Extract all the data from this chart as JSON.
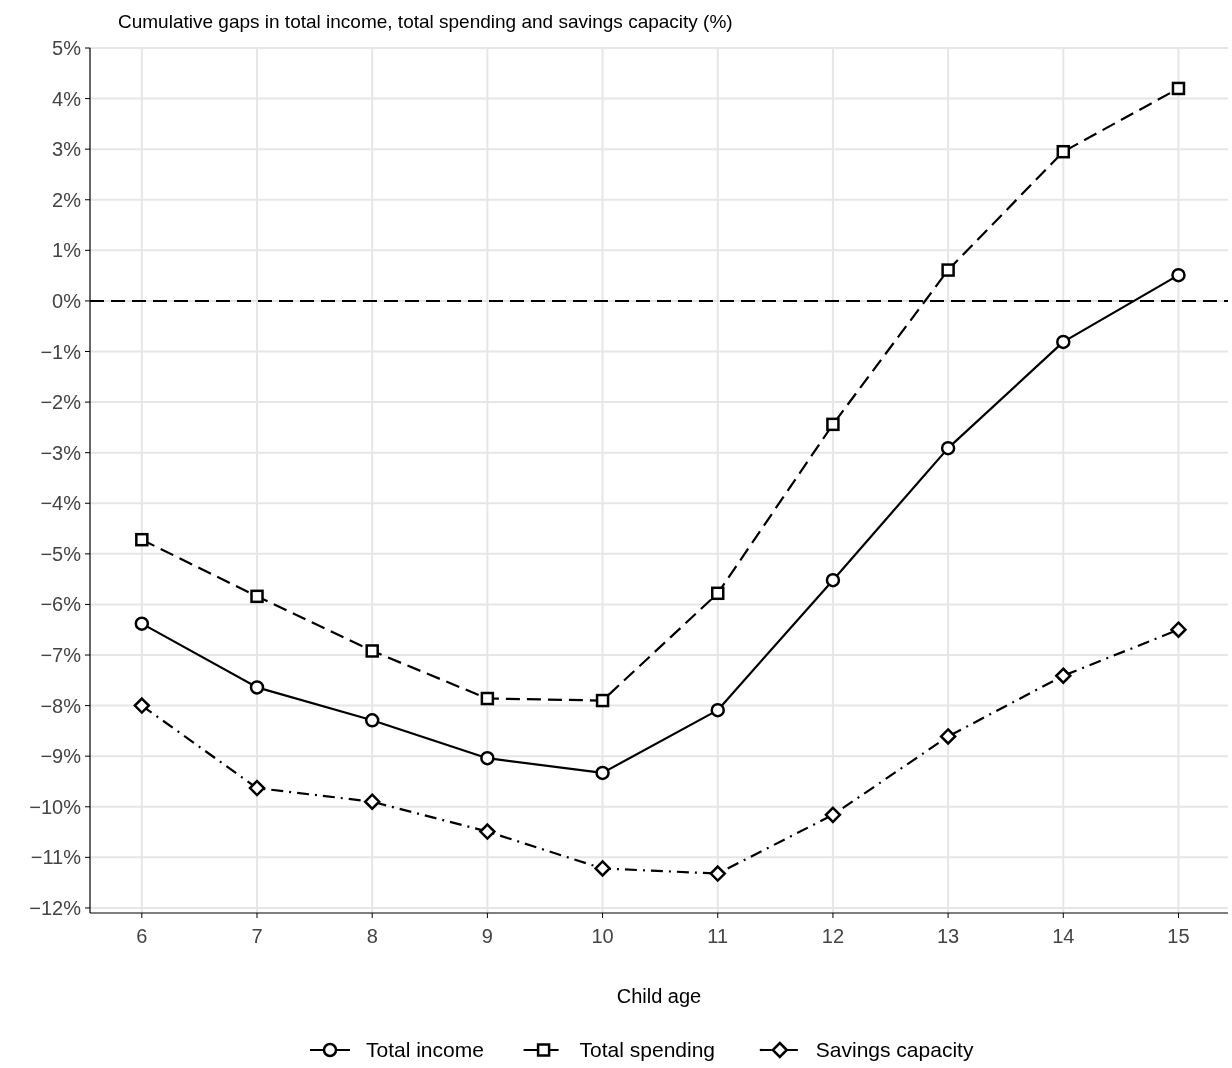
{
  "chart_data": {
    "type": "line",
    "ylabel": "Cumulative gaps in total income, total spending and savings capacity (%)",
    "xlabel": "Child age",
    "x": [
      6,
      7,
      8,
      9,
      10,
      11,
      12,
      13,
      14,
      15
    ],
    "series": [
      {
        "name": "Total income",
        "color": "#000000",
        "marker": "circle",
        "line_style": "solid",
        "values": [
          -6.38,
          -7.64,
          -8.29,
          -9.04,
          -9.33,
          -8.09,
          -5.52,
          -2.91,
          -0.81,
          0.51
        ]
      },
      {
        "name": "Total spending",
        "color": "#000000",
        "marker": "square",
        "line_style": "dashed",
        "values": [
          -4.72,
          -5.84,
          -6.92,
          -7.86,
          -7.9,
          -5.78,
          -2.44,
          0.61,
          2.95,
          4.2
        ]
      },
      {
        "name": "Savings capacity",
        "color": "#000000",
        "marker": "diamond",
        "line_style": "dashdot",
        "values": [
          -8.0,
          -9.63,
          -9.9,
          -10.49,
          -11.22,
          -11.32,
          -10.16,
          -8.61,
          -7.41,
          -6.5
        ]
      }
    ],
    "xlim": [
      5.55,
      15.43
    ],
    "xticks": [
      6,
      7,
      8,
      9,
      10,
      11,
      12,
      13,
      14,
      15
    ],
    "ylim": [
      -12.1,
      5.0
    ],
    "yticks": [
      {
        "value": 5,
        "label": "5%"
      },
      {
        "value": 4,
        "label": "4%"
      },
      {
        "value": 3,
        "label": "3%"
      },
      {
        "value": 2,
        "label": "2%"
      },
      {
        "value": 1,
        "label": "1%"
      },
      {
        "value": 0,
        "label": "0%"
      },
      {
        "value": -1,
        "label": "−1%"
      },
      {
        "value": -2,
        "label": "−2%"
      },
      {
        "value": -3,
        "label": "−3%"
      },
      {
        "value": -4,
        "label": "−4%"
      },
      {
        "value": -5,
        "label": "−5%"
      },
      {
        "value": -6,
        "label": "−6%"
      },
      {
        "value": -7,
        "label": "−7%"
      },
      {
        "value": -8,
        "label": "−8%"
      },
      {
        "value": -9,
        "label": "−9%"
      },
      {
        "value": -10,
        "label": "−10%"
      },
      {
        "value": -11,
        "label": "−11%"
      },
      {
        "value": -12,
        "label": "−12%"
      }
    ],
    "grid": true,
    "legend": "bottom",
    "ref_lines": [
      {
        "axis": "y",
        "value": 0,
        "color": "#000000",
        "line_style": "dashed"
      }
    ]
  }
}
